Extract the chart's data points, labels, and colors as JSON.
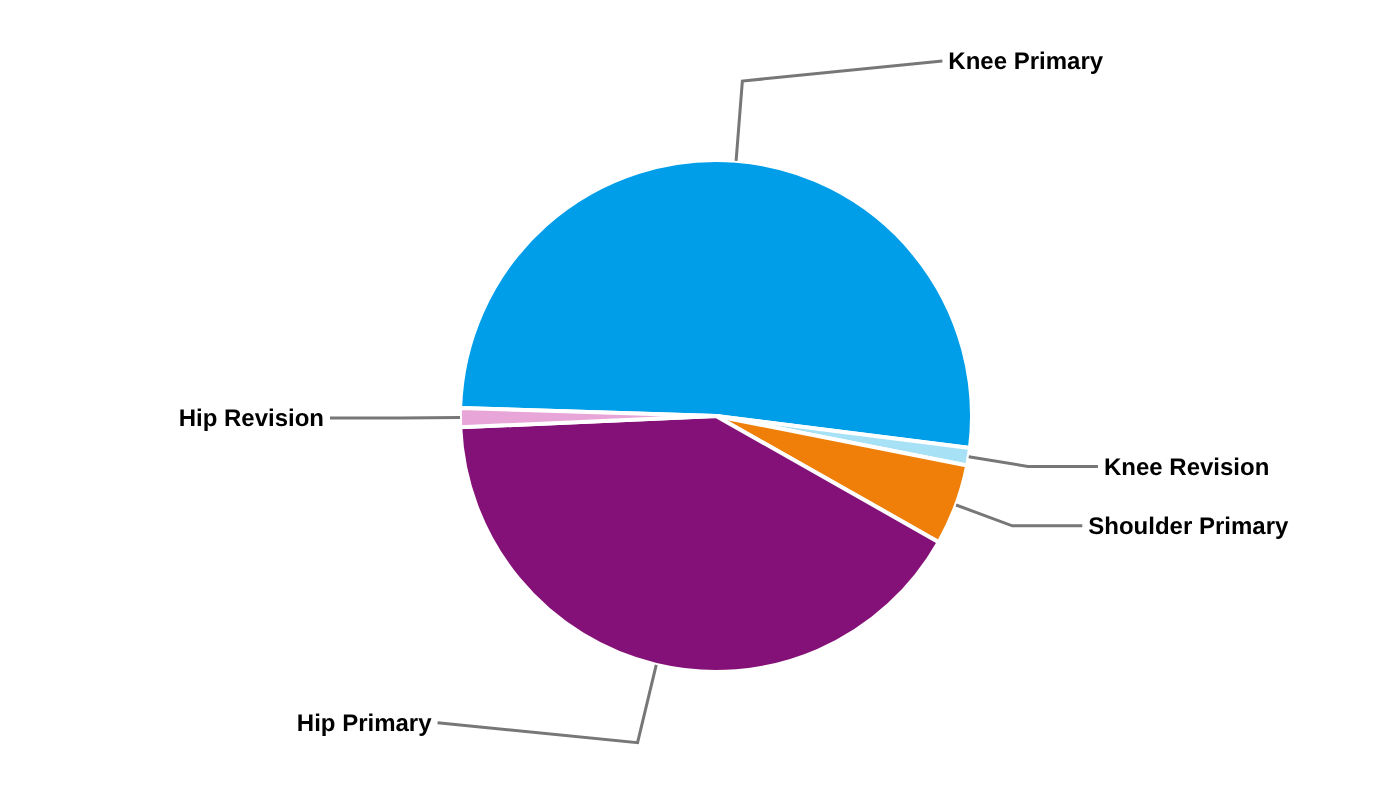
{
  "chart_data": {
    "type": "pie",
    "categories": [
      "Knee Primary",
      "Knee Revision",
      "Shoulder Primary",
      "Hip Primary",
      "Hip Revision"
    ],
    "values": [
      51.5,
      1.1,
      5.1,
      41.1,
      1.2
    ],
    "colors": [
      "#009ee9",
      "#a6e1f5",
      "#f07f09",
      "#841177",
      "#e8a6d8"
    ],
    "legend": false
  }
}
